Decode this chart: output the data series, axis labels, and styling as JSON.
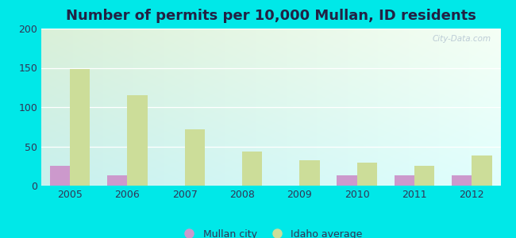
{
  "title": "Number of permits per 10,000 Mullan, ID residents",
  "years": [
    2005,
    2006,
    2007,
    2008,
    2009,
    2010,
    2011,
    2012
  ],
  "mullan_values": [
    25,
    13,
    0,
    0,
    0,
    13,
    13,
    13
  ],
  "idaho_values": [
    148,
    115,
    72,
    43,
    32,
    29,
    25,
    38
  ],
  "mullan_color": "#cc99cc",
  "idaho_color": "#ccdd99",
  "background_color": "#00e8e8",
  "plot_bg_top_left": "#daf0d8",
  "plot_bg_top_right": "#f5fff5",
  "plot_bg_bottom": "#c8f0ee",
  "ylim": [
    0,
    200
  ],
  "yticks": [
    0,
    50,
    100,
    150,
    200
  ],
  "bar_width": 0.35,
  "watermark": "City-Data.com",
  "legend_mullan": "Mullan city",
  "legend_idaho": "Idaho average",
  "title_fontsize": 13,
  "tick_fontsize": 9,
  "legend_fontsize": 9,
  "title_color": "#222244"
}
